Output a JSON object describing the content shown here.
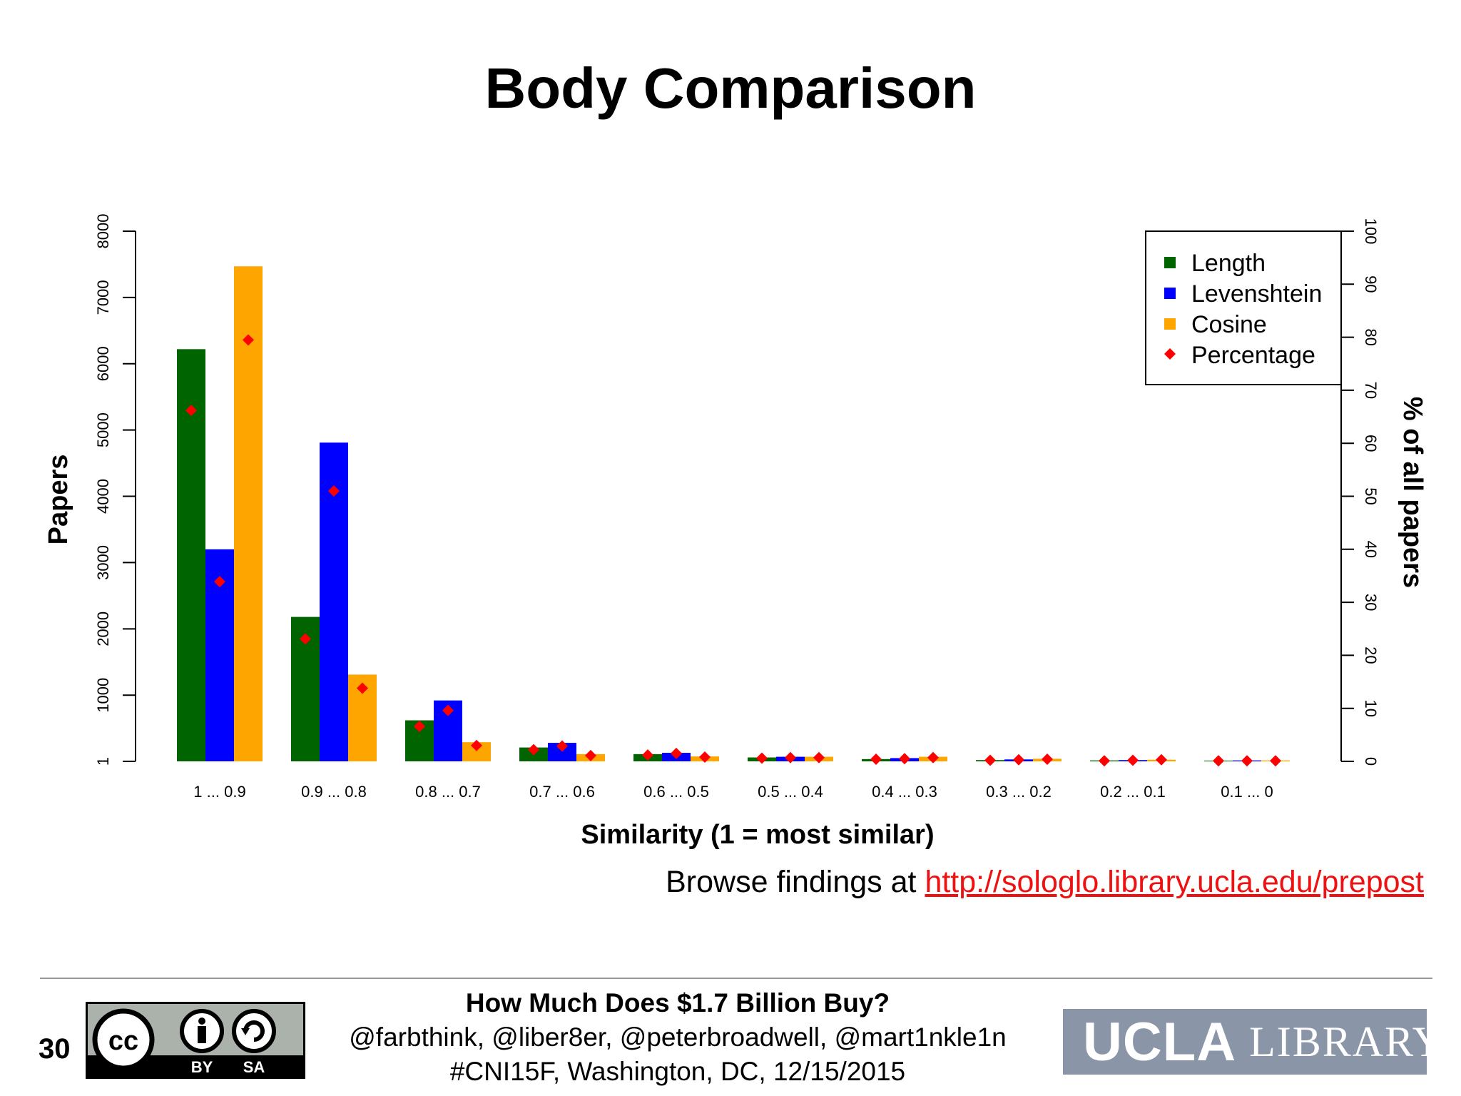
{
  "slide": {
    "title": "Body Comparison",
    "number": "30",
    "browse_prefix": "Browse findings at",
    "browse_link": "http://sologlo.library.ucla.edu/prepost"
  },
  "footer": {
    "title": "How Much Does $1.7 Billion Buy?",
    "authors": "@farbthink, @liber8er, @peterbroadwell, @mart1nkle1n",
    "event": "#CNI15F, Washington, DC, 12/15/2015",
    "cc_labels": {
      "cc": "cc",
      "by": "BY",
      "sa": "SA"
    },
    "logo_ucla": "UCLA",
    "logo_library": "LIBRARY"
  },
  "colors": {
    "length": "#006400",
    "levenshtein": "#0000ff",
    "cosine": "#ffa500",
    "percentage": "#ff0000",
    "link": "#ee1111"
  },
  "chart_data": {
    "type": "bar",
    "title": "",
    "xlabel": "Similarity (1 = most similar)",
    "ylabel": "Papers",
    "y2label": "% of all papers",
    "categories": [
      "1 ... 0.9",
      "0.9 ... 0.8",
      "0.8 ... 0.7",
      "0.7 ... 0.6",
      "0.6 ... 0.5",
      "0.5 ... 0.4",
      "0.4 ... 0.3",
      "0.3 ... 0.2",
      "0.2 ... 0.1",
      "0.1 ... 0"
    ],
    "ylim": [
      1,
      8000
    ],
    "y_ticks": [
      1,
      1000,
      2000,
      3000,
      4000,
      5000,
      6000,
      7000,
      8000
    ],
    "y2lim": [
      0,
      100
    ],
    "y2_ticks": [
      0,
      10,
      20,
      30,
      40,
      50,
      60,
      70,
      80,
      90,
      100
    ],
    "legend_position": "top-right",
    "grid": false,
    "series": [
      {
        "name": "Length",
        "color": "#006400",
        "values": [
          6220,
          2180,
          620,
          210,
          110,
          60,
          35,
          20,
          15,
          12
        ]
      },
      {
        "name": "Levenshtein",
        "color": "#0000ff",
        "values": [
          3200,
          4810,
          920,
          280,
          130,
          70,
          50,
          30,
          20,
          15
        ]
      },
      {
        "name": "Cosine",
        "color": "#ffa500",
        "values": [
          7470,
          1310,
          290,
          110,
          75,
          70,
          70,
          40,
          25,
          15
        ]
      }
    ],
    "percentage_series": {
      "name": "Percentage",
      "color": "#ff0000",
      "marker": "diamond",
      "values": [
        [
          66.2,
          33.9,
          79.5
        ],
        [
          23.1,
          51.0,
          13.8
        ],
        [
          6.6,
          9.6,
          3.0
        ],
        [
          2.2,
          2.9,
          1.1
        ],
        [
          1.2,
          1.5,
          0.8
        ],
        [
          0.6,
          0.7,
          0.7
        ],
        [
          0.4,
          0.5,
          0.7
        ],
        [
          0.2,
          0.3,
          0.4
        ],
        [
          0.1,
          0.2,
          0.3
        ],
        [
          0.1,
          0.1,
          0.1
        ]
      ]
    }
  }
}
